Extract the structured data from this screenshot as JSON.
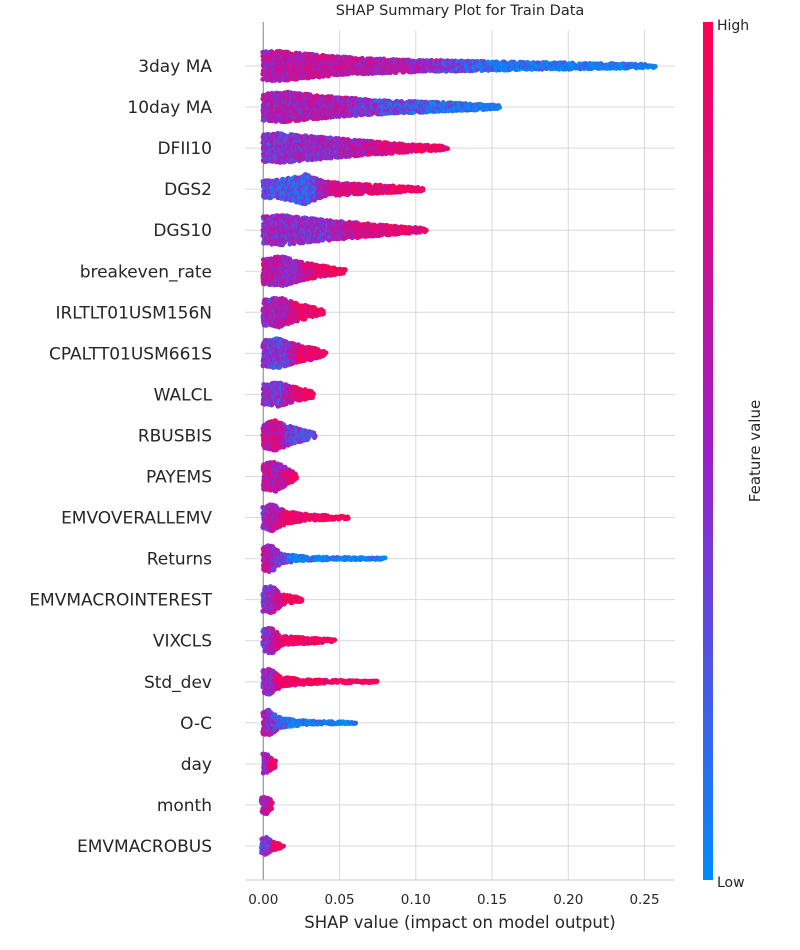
{
  "chart_data": {
    "type": "scatter",
    "subtype": "shap-beeswarm",
    "title": "SHAP Summary Plot for Train Data",
    "xlabel": "SHAP value (impact on model output)",
    "ylabel": "",
    "xlim": [
      -0.012,
      0.27
    ],
    "xticks": [
      0.0,
      0.05,
      0.1,
      0.15,
      0.2,
      0.25
    ],
    "xtick_labels": [
      "0.00",
      "0.05",
      "0.10",
      "0.15",
      "0.20",
      "0.25"
    ],
    "grid": true,
    "colorbar": {
      "label": "Feature value",
      "high_label": "High",
      "low_label": "Low",
      "high_color": "#ff0052",
      "mid_color": "#9d1fc8",
      "low_color": "#008bfb"
    },
    "features": [
      {
        "name": "3day MA",
        "min": 0.0,
        "max": 0.257,
        "profile": [
          [
            0.0,
            0.95
          ],
          [
            0.01,
            1.0
          ],
          [
            0.03,
            0.8
          ],
          [
            0.06,
            0.55
          ],
          [
            0.1,
            0.4
          ],
          [
            0.15,
            0.3
          ],
          [
            0.2,
            0.22
          ],
          [
            0.257,
            0.12
          ]
        ],
        "color_stops": [
          [
            0.0,
            0.6
          ],
          [
            0.04,
            0.7
          ],
          [
            0.1,
            0.55
          ],
          [
            0.15,
            0.1
          ],
          [
            0.257,
            0.0
          ]
        ]
      },
      {
        "name": "10day MA",
        "min": 0.0,
        "max": 0.155,
        "profile": [
          [
            0.0,
            0.9
          ],
          [
            0.015,
            1.0
          ],
          [
            0.03,
            0.85
          ],
          [
            0.05,
            0.65
          ],
          [
            0.08,
            0.45
          ],
          [
            0.12,
            0.3
          ],
          [
            0.155,
            0.12
          ]
        ],
        "color_stops": [
          [
            0.0,
            0.55
          ],
          [
            0.05,
            0.6
          ],
          [
            0.08,
            0.35
          ],
          [
            0.155,
            0.0
          ]
        ]
      },
      {
        "name": "DFII10",
        "min": 0.0,
        "max": 0.121,
        "profile": [
          [
            0.0,
            0.9
          ],
          [
            0.01,
            1.0
          ],
          [
            0.03,
            0.8
          ],
          [
            0.06,
            0.55
          ],
          [
            0.09,
            0.3
          ],
          [
            0.121,
            0.12
          ]
        ],
        "color_stops": [
          [
            0.0,
            0.45
          ],
          [
            0.05,
            0.5
          ],
          [
            0.08,
            0.8
          ],
          [
            0.121,
            1.0
          ]
        ]
      },
      {
        "name": "DGS2",
        "min": 0.0,
        "max": 0.105,
        "profile": [
          [
            0.0,
            0.55
          ],
          [
            0.015,
            0.7
          ],
          [
            0.027,
            1.0
          ],
          [
            0.04,
            0.5
          ],
          [
            0.06,
            0.35
          ],
          [
            0.08,
            0.25
          ],
          [
            0.105,
            0.12
          ]
        ],
        "color_stops": [
          [
            0.0,
            0.3
          ],
          [
            0.03,
            0.2
          ],
          [
            0.045,
            0.75
          ],
          [
            0.105,
            1.0
          ]
        ]
      },
      {
        "name": "DGS10",
        "min": 0.0,
        "max": 0.107,
        "profile": [
          [
            0.0,
            0.9
          ],
          [
            0.012,
            1.0
          ],
          [
            0.03,
            0.8
          ],
          [
            0.05,
            0.6
          ],
          [
            0.08,
            0.35
          ],
          [
            0.107,
            0.12
          ]
        ],
        "color_stops": [
          [
            0.0,
            0.5
          ],
          [
            0.04,
            0.45
          ],
          [
            0.07,
            0.85
          ],
          [
            0.107,
            1.0
          ]
        ]
      },
      {
        "name": "breakeven_rate",
        "min": 0.0,
        "max": 0.054,
        "profile": [
          [
            0.0,
            0.85
          ],
          [
            0.012,
            1.0
          ],
          [
            0.025,
            0.6
          ],
          [
            0.04,
            0.35
          ],
          [
            0.054,
            0.12
          ]
        ],
        "color_stops": [
          [
            0.0,
            0.65
          ],
          [
            0.02,
            0.5
          ],
          [
            0.035,
            0.9
          ],
          [
            0.054,
            1.0
          ]
        ]
      },
      {
        "name": "IRLTLT01USM156N",
        "min": 0.0,
        "max": 0.04,
        "profile": [
          [
            0.0,
            0.85
          ],
          [
            0.01,
            1.0
          ],
          [
            0.022,
            0.6
          ],
          [
            0.032,
            0.35
          ],
          [
            0.04,
            0.12
          ]
        ],
        "color_stops": [
          [
            0.0,
            0.5
          ],
          [
            0.015,
            0.6
          ],
          [
            0.025,
            0.9
          ],
          [
            0.04,
            1.0
          ]
        ]
      },
      {
        "name": "CPALTT01USM661S",
        "min": 0.0,
        "max": 0.041,
        "profile": [
          [
            0.0,
            0.85
          ],
          [
            0.01,
            1.0
          ],
          [
            0.022,
            0.6
          ],
          [
            0.032,
            0.4
          ],
          [
            0.041,
            0.12
          ]
        ],
        "color_stops": [
          [
            0.0,
            0.45
          ],
          [
            0.015,
            0.35
          ],
          [
            0.025,
            0.9
          ],
          [
            0.041,
            1.0
          ]
        ]
      },
      {
        "name": "WALCL",
        "min": 0.0,
        "max": 0.033,
        "profile": [
          [
            0.0,
            0.7
          ],
          [
            0.01,
            0.8
          ],
          [
            0.02,
            0.5
          ],
          [
            0.033,
            0.2
          ]
        ],
        "color_stops": [
          [
            0.0,
            0.5
          ],
          [
            0.012,
            0.4
          ],
          [
            0.022,
            0.9
          ],
          [
            0.033,
            1.0
          ]
        ]
      },
      {
        "name": "RBUSBIS",
        "min": 0.0,
        "max": 0.034,
        "profile": [
          [
            0.0,
            0.8
          ],
          [
            0.008,
            1.0
          ],
          [
            0.018,
            0.6
          ],
          [
            0.034,
            0.15
          ]
        ],
        "color_stops": [
          [
            0.0,
            0.7
          ],
          [
            0.01,
            0.75
          ],
          [
            0.02,
            0.3
          ],
          [
            0.034,
            0.25
          ]
        ]
      },
      {
        "name": "PAYEMS",
        "min": 0.0,
        "max": 0.022,
        "profile": [
          [
            0.0,
            0.85
          ],
          [
            0.008,
            1.0
          ],
          [
            0.015,
            0.6
          ],
          [
            0.022,
            0.15
          ]
        ],
        "color_stops": [
          [
            0.0,
            0.7
          ],
          [
            0.01,
            0.6
          ],
          [
            0.022,
            0.95
          ]
        ]
      },
      {
        "name": "EMVOVERALLEMV",
        "min": 0.0,
        "max": 0.056,
        "profile": [
          [
            0.0,
            0.8
          ],
          [
            0.006,
            0.9
          ],
          [
            0.015,
            0.4
          ],
          [
            0.03,
            0.2
          ],
          [
            0.056,
            0.08
          ]
        ],
        "color_stops": [
          [
            0.0,
            0.45
          ],
          [
            0.01,
            0.7
          ],
          [
            0.02,
            1.0
          ],
          [
            0.056,
            1.0
          ]
        ]
      },
      {
        "name": "Returns",
        "min": 0.0,
        "max": 0.08,
        "profile": [
          [
            0.0,
            0.85
          ],
          [
            0.005,
            0.9
          ],
          [
            0.012,
            0.3
          ],
          [
            0.03,
            0.12
          ],
          [
            0.08,
            0.05
          ]
        ],
        "color_stops": [
          [
            0.0,
            0.7
          ],
          [
            0.008,
            0.5
          ],
          [
            0.02,
            0.0
          ],
          [
            0.08,
            0.0
          ]
        ]
      },
      {
        "name": "EMVMACROINTEREST",
        "min": 0.0,
        "max": 0.026,
        "profile": [
          [
            0.0,
            0.8
          ],
          [
            0.006,
            0.9
          ],
          [
            0.012,
            0.35
          ],
          [
            0.026,
            0.12
          ]
        ],
        "color_stops": [
          [
            0.0,
            0.4
          ],
          [
            0.008,
            0.6
          ],
          [
            0.015,
            1.0
          ],
          [
            0.026,
            1.0
          ]
        ]
      },
      {
        "name": "VIXCLS",
        "min": 0.0,
        "max": 0.047,
        "profile": [
          [
            0.0,
            0.8
          ],
          [
            0.006,
            0.85
          ],
          [
            0.012,
            0.3
          ],
          [
            0.03,
            0.2
          ],
          [
            0.047,
            0.08
          ]
        ],
        "color_stops": [
          [
            0.0,
            0.4
          ],
          [
            0.007,
            0.55
          ],
          [
            0.012,
            1.0
          ],
          [
            0.047,
            1.0
          ]
        ]
      },
      {
        "name": "Std_dev",
        "min": 0.0,
        "max": 0.075,
        "profile": [
          [
            0.0,
            0.8
          ],
          [
            0.005,
            0.85
          ],
          [
            0.012,
            0.3
          ],
          [
            0.03,
            0.15
          ],
          [
            0.075,
            0.05
          ]
        ],
        "color_stops": [
          [
            0.0,
            0.4
          ],
          [
            0.007,
            0.6
          ],
          [
            0.012,
            1.0
          ],
          [
            0.075,
            1.0
          ]
        ]
      },
      {
        "name": "O-C",
        "min": 0.0,
        "max": 0.061,
        "profile": [
          [
            0.0,
            0.8
          ],
          [
            0.004,
            0.85
          ],
          [
            0.012,
            0.3
          ],
          [
            0.03,
            0.12
          ],
          [
            0.061,
            0.05
          ]
        ],
        "color_stops": [
          [
            0.0,
            0.6
          ],
          [
            0.008,
            0.35
          ],
          [
            0.02,
            0.0
          ],
          [
            0.061,
            0.0
          ]
        ]
      },
      {
        "name": "day",
        "min": 0.0,
        "max": 0.008,
        "profile": [
          [
            0.0,
            0.7
          ],
          [
            0.003,
            0.6
          ],
          [
            0.008,
            0.2
          ]
        ],
        "color_stops": [
          [
            0.0,
            0.5
          ],
          [
            0.004,
            0.7
          ],
          [
            0.008,
            1.0
          ]
        ]
      },
      {
        "name": "month",
        "min": -0.001,
        "max": 0.006,
        "profile": [
          [
            -0.001,
            0.5
          ],
          [
            0.002,
            0.6
          ],
          [
            0.006,
            0.2
          ]
        ],
        "color_stops": [
          [
            0.0,
            0.55
          ],
          [
            0.006,
            0.8
          ]
        ]
      },
      {
        "name": "EMVMACROBUS",
        "min": -0.001,
        "max": 0.013,
        "profile": [
          [
            -0.001,
            0.5
          ],
          [
            0.002,
            0.6
          ],
          [
            0.006,
            0.3
          ],
          [
            0.013,
            0.1
          ]
        ],
        "color_stops": [
          [
            0.0,
            0.35
          ],
          [
            0.005,
            0.45
          ],
          [
            0.008,
            1.0
          ],
          [
            0.013,
            1.0
          ]
        ]
      }
    ]
  }
}
